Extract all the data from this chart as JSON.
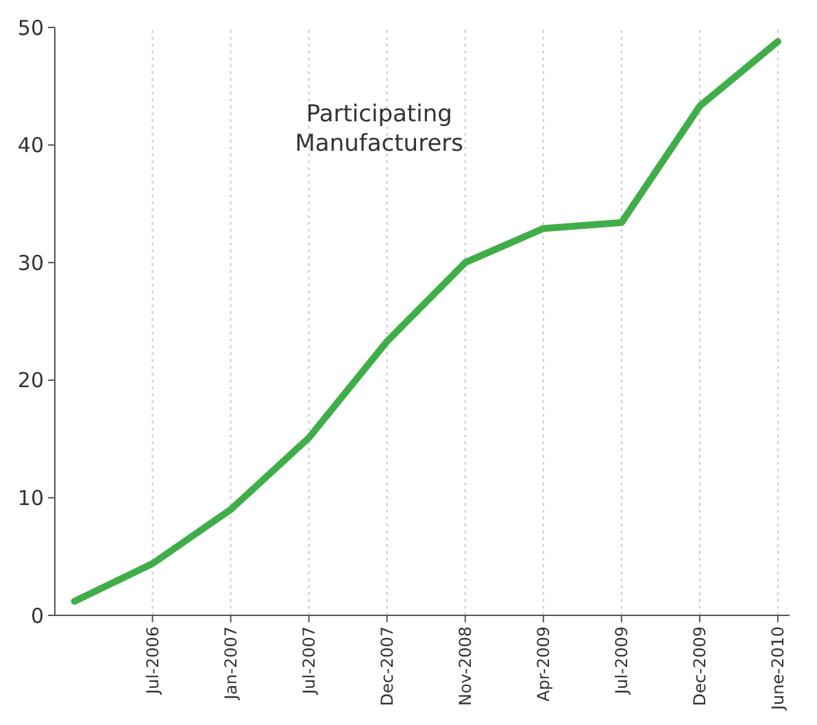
{
  "chart_data": {
    "type": "line",
    "title": "Participating Manufacturers",
    "categories": [
      null,
      "Jul-2006",
      "Jan-2007",
      "Jul-2007",
      "Dec-2007",
      "Nov-2008",
      "Apr-2009",
      "Jul-2009",
      "Dec-2009",
      "June-2010"
    ],
    "series": [
      {
        "color": "#3fae49",
        "values": [
          1.2,
          4.4,
          9,
          15.1,
          23.3,
          30,
          32.9,
          33.4,
          43.3,
          48.8
        ]
      }
    ],
    "ylim": [
      0,
      50
    ],
    "yticks": [
      0,
      10,
      20,
      30,
      40,
      50
    ],
    "grid": "x",
    "marker": "none",
    "line_style": "solid"
  }
}
